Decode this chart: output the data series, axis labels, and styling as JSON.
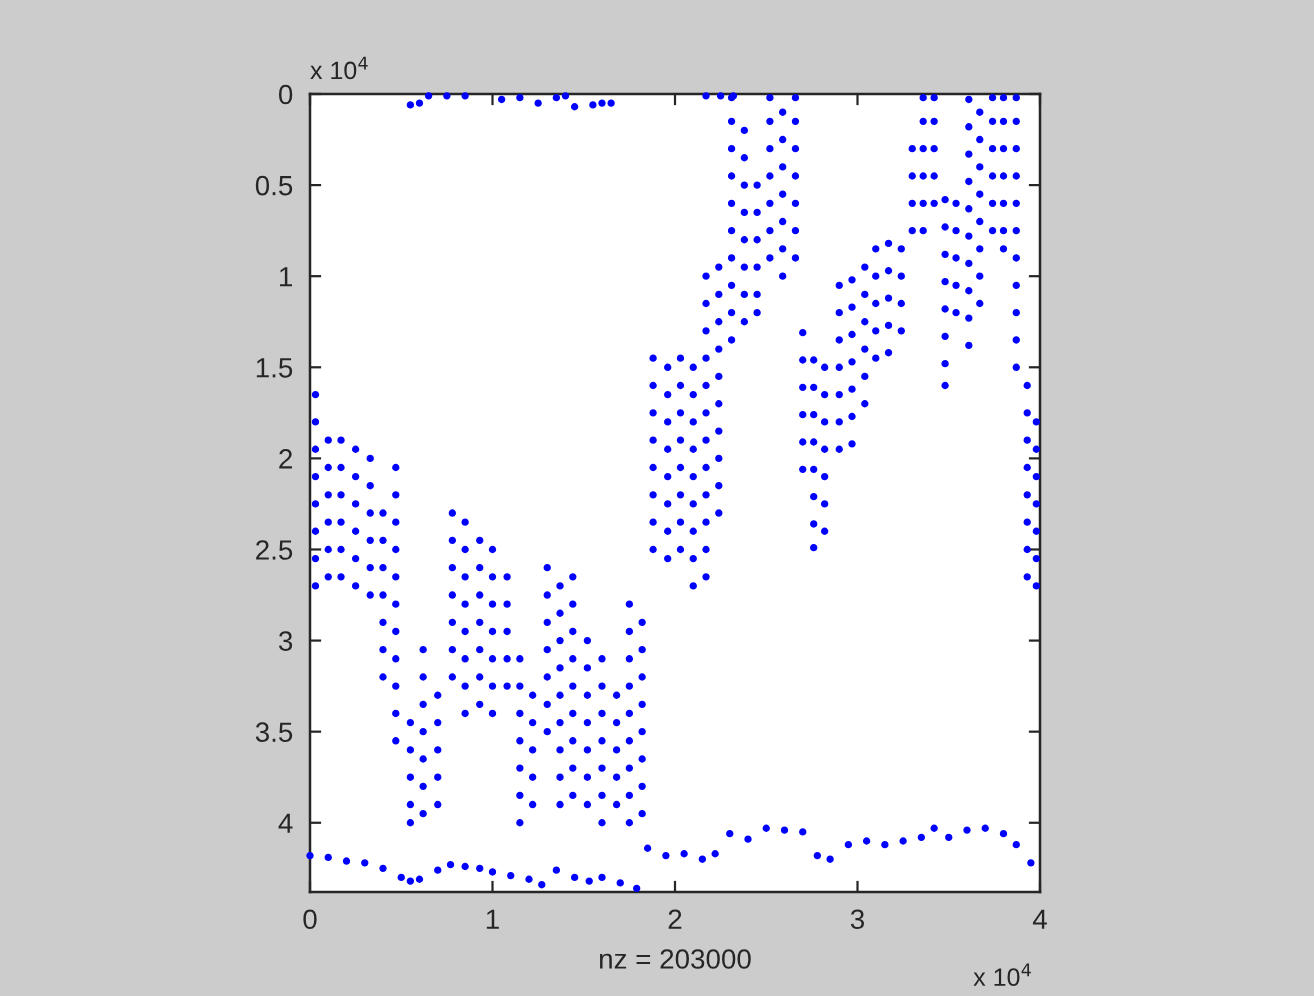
{
  "chart_data": {
    "type": "scatter",
    "xlabel": "nz = 203000",
    "annotations": [
      "x 10$^{4}$",
      "x 10$^{4}$"
    ],
    "xlim": [
      0,
      4
    ],
    "ylim": [
      4.38,
      0
    ],
    "xticks": [
      0,
      1,
      2,
      3,
      4
    ],
    "yticks": [
      0,
      0.5,
      1,
      1.5,
      2,
      2.5,
      3,
      3.5,
      4
    ],
    "marker": "circle",
    "series": [
      {
        "color": "#0000ff",
        "x": [
          0.03,
          0.03,
          0.03,
          0.03,
          0.03,
          0.03,
          0.03,
          0.03
        ],
        "values": [
          1.65,
          1.8,
          1.95,
          2.1,
          2.25,
          2.4,
          2.55,
          2.7
        ]
      },
      {
        "color": "#0000ff",
        "x": [
          0.1,
          0.1,
          0.1,
          0.1,
          0.1,
          0.1
        ],
        "values": [
          1.9,
          2.05,
          2.2,
          2.35,
          2.5,
          2.65
        ]
      },
      {
        "color": "#0000ff",
        "x": [
          0.17,
          0.17,
          0.17,
          0.17,
          0.17,
          0.17
        ],
        "values": [
          1.9,
          2.05,
          2.2,
          2.35,
          2.5,
          2.65
        ]
      },
      {
        "color": "#0000ff",
        "x": [
          0.25,
          0.25,
          0.25,
          0.25,
          0.25,
          0.25
        ],
        "values": [
          1.95,
          2.1,
          2.25,
          2.4,
          2.55,
          2.7
        ]
      },
      {
        "color": "#0000ff",
        "x": [
          0.33,
          0.33,
          0.33,
          0.33,
          0.33,
          0.33
        ],
        "values": [
          2.0,
          2.15,
          2.3,
          2.45,
          2.6,
          2.75
        ]
      },
      {
        "color": "#0000ff",
        "x": [
          0.4,
          0.4,
          0.4,
          0.4,
          0.4,
          0.4,
          0.4
        ],
        "values": [
          2.3,
          2.45,
          2.6,
          2.75,
          2.9,
          3.05,
          3.2
        ]
      },
      {
        "color": "#0000ff",
        "x": [
          0.47,
          0.47,
          0.47,
          0.47,
          0.47,
          0.47,
          0.47,
          0.47,
          0.47,
          0.47,
          0.47
        ],
        "values": [
          2.05,
          2.2,
          2.35,
          2.5,
          2.65,
          2.8,
          2.95,
          3.1,
          3.25,
          3.4,
          3.55
        ]
      },
      {
        "color": "#0000ff",
        "x": [
          0.55,
          0.55,
          0.55,
          0.55,
          0.55
        ],
        "values": [
          3.45,
          3.6,
          3.75,
          3.9,
          4.0
        ]
      },
      {
        "color": "#0000ff",
        "x": [
          0.62,
          0.62,
          0.62,
          0.62,
          0.62,
          0.62,
          0.62
        ],
        "values": [
          3.05,
          3.2,
          3.35,
          3.5,
          3.65,
          3.8,
          3.95
        ]
      },
      {
        "color": "#0000ff",
        "x": [
          0.7,
          0.7,
          0.7,
          0.7,
          0.7
        ],
        "values": [
          3.3,
          3.45,
          3.6,
          3.75,
          3.9
        ]
      },
      {
        "color": "#0000ff",
        "x": [
          0.78,
          0.78,
          0.78,
          0.78,
          0.78,
          0.78,
          0.78
        ],
        "values": [
          2.3,
          2.45,
          2.6,
          2.75,
          2.9,
          3.05,
          3.2
        ]
      },
      {
        "color": "#0000ff",
        "x": [
          0.85,
          0.85,
          0.85,
          0.85,
          0.85,
          0.85,
          0.85,
          0.85
        ],
        "values": [
          2.35,
          2.5,
          2.65,
          2.8,
          2.95,
          3.1,
          3.25,
          3.4
        ]
      },
      {
        "color": "#0000ff",
        "x": [
          0.93,
          0.93,
          0.93,
          0.93,
          0.93,
          0.93,
          0.93
        ],
        "values": [
          2.45,
          2.6,
          2.75,
          2.9,
          3.05,
          3.2,
          3.35
        ]
      },
      {
        "color": "#0000ff",
        "x": [
          1.0,
          1.0,
          1.0,
          1.0,
          1.0,
          1.0,
          1.0
        ],
        "values": [
          2.5,
          2.65,
          2.8,
          2.95,
          3.1,
          3.25,
          3.4
        ]
      },
      {
        "color": "#0000ff",
        "x": [
          1.08,
          1.08,
          1.08,
          1.08,
          1.08
        ],
        "values": [
          2.65,
          2.8,
          2.95,
          3.1,
          3.25
        ]
      },
      {
        "color": "#0000ff",
        "x": [
          1.15,
          1.15,
          1.15,
          1.15,
          1.15,
          1.15,
          1.15
        ],
        "values": [
          3.1,
          3.25,
          3.4,
          3.55,
          3.7,
          3.85,
          4.0
        ]
      },
      {
        "color": "#0000ff",
        "x": [
          1.22,
          1.22,
          1.22,
          1.22,
          1.22
        ],
        "values": [
          3.3,
          3.45,
          3.6,
          3.75,
          3.9
        ]
      },
      {
        "color": "#0000ff",
        "x": [
          1.3,
          1.3,
          1.3,
          1.3,
          1.3,
          1.3,
          1.3
        ],
        "values": [
          2.6,
          2.75,
          2.9,
          3.05,
          3.2,
          3.35,
          3.5
        ]
      },
      {
        "color": "#0000ff",
        "x": [
          1.37,
          1.37,
          1.37,
          1.37,
          1.37,
          1.37,
          1.37,
          1.37,
          1.37
        ],
        "values": [
          2.7,
          2.85,
          3.0,
          3.15,
          3.3,
          3.45,
          3.6,
          3.75,
          3.9
        ]
      },
      {
        "color": "#0000ff",
        "x": [
          1.44,
          1.44,
          1.44,
          1.44,
          1.44,
          1.44,
          1.44,
          1.44,
          1.44
        ],
        "values": [
          2.65,
          2.8,
          2.95,
          3.1,
          3.25,
          3.4,
          3.55,
          3.7,
          3.85
        ]
      },
      {
        "color": "#0000ff",
        "x": [
          1.52,
          1.52,
          1.52,
          1.52,
          1.52,
          1.52,
          1.52
        ],
        "values": [
          3.0,
          3.15,
          3.3,
          3.45,
          3.6,
          3.75,
          3.9
        ]
      },
      {
        "color": "#0000ff",
        "x": [
          1.6,
          1.6,
          1.6,
          1.6,
          1.6,
          1.6,
          1.6
        ],
        "values": [
          3.1,
          3.25,
          3.4,
          3.55,
          3.7,
          3.85,
          4.0
        ]
      },
      {
        "color": "#0000ff",
        "x": [
          1.68,
          1.68,
          1.68,
          1.68,
          1.68
        ],
        "values": [
          3.3,
          3.45,
          3.6,
          3.75,
          3.9
        ]
      },
      {
        "color": "#0000ff",
        "x": [
          1.75,
          1.75,
          1.75,
          1.75,
          1.75,
          1.75,
          1.75,
          1.75,
          1.75
        ],
        "values": [
          2.8,
          2.95,
          3.1,
          3.25,
          3.4,
          3.55,
          3.7,
          3.85,
          4.0
        ]
      },
      {
        "color": "#0000ff",
        "x": [
          1.82,
          1.82,
          1.82,
          1.82,
          1.82,
          1.82,
          1.82,
          1.82
        ],
        "values": [
          2.9,
          3.05,
          3.2,
          3.35,
          3.5,
          3.65,
          3.8,
          3.95
        ]
      },
      {
        "color": "#0000ff",
        "x": [
          1.88,
          1.88,
          1.88,
          1.88,
          1.88,
          1.88,
          1.88,
          1.88
        ],
        "values": [
          1.45,
          1.6,
          1.75,
          1.9,
          2.05,
          2.2,
          2.35,
          2.5
        ]
      },
      {
        "color": "#0000ff",
        "x": [
          1.96,
          1.96,
          1.96,
          1.96,
          1.96,
          1.96,
          1.96,
          1.96
        ],
        "values": [
          1.5,
          1.65,
          1.8,
          1.95,
          2.1,
          2.25,
          2.4,
          2.55
        ]
      },
      {
        "color": "#0000ff",
        "x": [
          2.03,
          2.03,
          2.03,
          2.03,
          2.03,
          2.03,
          2.03,
          2.03
        ],
        "values": [
          1.45,
          1.6,
          1.75,
          1.9,
          2.05,
          2.2,
          2.35,
          2.5
        ]
      },
      {
        "color": "#0000ff",
        "x": [
          2.1,
          2.1,
          2.1,
          2.1,
          2.1,
          2.1,
          2.1,
          2.1,
          2.1
        ],
        "values": [
          1.5,
          1.65,
          1.8,
          1.95,
          2.1,
          2.25,
          2.4,
          2.55,
          2.7
        ]
      },
      {
        "color": "#0000ff",
        "x": [
          2.17,
          2.17,
          2.17,
          2.17,
          2.17,
          2.17,
          2.17,
          2.17,
          2.17,
          2.17,
          2.17,
          2.17
        ],
        "values": [
          1.0,
          1.15,
          1.3,
          1.45,
          1.6,
          1.75,
          1.9,
          2.05,
          2.2,
          2.35,
          2.5,
          2.65
        ]
      },
      {
        "color": "#0000ff",
        "x": [
          2.24,
          2.24,
          2.24,
          2.24,
          2.24,
          2.24,
          2.24,
          2.24,
          2.24,
          2.24
        ],
        "values": [
          0.95,
          1.1,
          1.25,
          1.4,
          1.55,
          1.7,
          1.85,
          2.0,
          2.15,
          2.3
        ]
      },
      {
        "color": "#0000ff",
        "x": [
          2.31,
          2.31,
          2.31,
          2.31,
          2.31,
          2.31,
          2.31,
          2.31,
          2.31,
          2.31
        ],
        "values": [
          0.02,
          0.15,
          0.3,
          0.45,
          0.6,
          0.75,
          0.9,
          1.05,
          1.2,
          1.35
        ]
      },
      {
        "color": "#0000ff",
        "x": [
          2.38,
          2.38,
          2.38,
          2.38,
          2.38,
          2.38,
          2.38,
          2.38
        ],
        "values": [
          0.2,
          0.35,
          0.5,
          0.65,
          0.8,
          0.95,
          1.1,
          1.25
        ]
      },
      {
        "color": "#0000ff",
        "x": [
          2.45,
          2.45,
          2.45,
          2.45,
          2.45,
          2.45
        ],
        "values": [
          0.5,
          0.65,
          0.8,
          0.95,
          1.1,
          1.2
        ]
      },
      {
        "color": "#0000ff",
        "x": [
          2.52,
          2.52,
          2.52,
          2.52,
          2.52,
          2.52,
          2.52
        ],
        "values": [
          0.02,
          0.15,
          0.3,
          0.45,
          0.6,
          0.75,
          0.9
        ]
      },
      {
        "color": "#0000ff",
        "x": [
          2.59,
          2.59,
          2.59,
          2.59,
          2.59,
          2.59,
          2.59
        ],
        "values": [
          0.1,
          0.25,
          0.4,
          0.55,
          0.7,
          0.85,
          1.0
        ]
      },
      {
        "color": "#0000ff",
        "x": [
          2.66,
          2.66,
          2.66,
          2.66,
          2.66,
          2.66,
          2.66
        ],
        "values": [
          0.02,
          0.15,
          0.3,
          0.45,
          0.6,
          0.75,
          0.9
        ]
      },
      {
        "color": "#0000ff",
        "x": [
          2.7,
          2.7,
          2.7,
          2.7,
          2.7,
          2.7
        ],
        "values": [
          1.31,
          1.46,
          1.61,
          1.76,
          1.91,
          2.06
        ]
      },
      {
        "color": "#0000ff",
        "x": [
          2.76,
          2.76,
          2.76,
          2.76,
          2.76,
          2.76,
          2.76,
          2.76
        ],
        "values": [
          1.46,
          1.61,
          1.76,
          1.91,
          2.06,
          2.21,
          2.36,
          2.49
        ]
      },
      {
        "color": "#0000ff",
        "x": [
          2.82,
          2.82,
          2.82,
          2.82,
          2.82,
          2.82,
          2.82
        ],
        "values": [
          1.5,
          1.65,
          1.8,
          1.95,
          2.1,
          2.25,
          2.4
        ]
      },
      {
        "color": "#0000ff",
        "x": [
          2.9,
          2.9,
          2.9,
          2.9,
          2.9,
          2.9,
          2.9
        ],
        "values": [
          1.05,
          1.2,
          1.35,
          1.5,
          1.65,
          1.8,
          1.95
        ]
      },
      {
        "color": "#0000ff",
        "x": [
          2.97,
          2.97,
          2.97,
          2.97,
          2.97,
          2.97,
          2.97
        ],
        "values": [
          1.02,
          1.17,
          1.32,
          1.47,
          1.62,
          1.77,
          1.92
        ]
      },
      {
        "color": "#0000ff",
        "x": [
          3.04,
          3.04,
          3.04,
          3.04,
          3.04,
          3.04
        ],
        "values": [
          0.95,
          1.1,
          1.25,
          1.4,
          1.55,
          1.7
        ]
      },
      {
        "color": "#0000ff",
        "x": [
          3.1,
          3.1,
          3.1,
          3.1,
          3.1
        ],
        "values": [
          0.85,
          1.0,
          1.15,
          1.3,
          1.45
        ]
      },
      {
        "color": "#0000ff",
        "x": [
          3.17,
          3.17,
          3.17,
          3.17,
          3.17
        ],
        "values": [
          0.82,
          0.97,
          1.12,
          1.27,
          1.42
        ]
      },
      {
        "color": "#0000ff",
        "x": [
          3.24,
          3.24,
          3.24,
          3.24
        ],
        "values": [
          0.85,
          1.0,
          1.15,
          1.3
        ]
      },
      {
        "color": "#0000ff",
        "x": [
          3.3,
          3.3,
          3.3,
          3.3
        ],
        "values": [
          0.3,
          0.45,
          0.6,
          0.75
        ]
      },
      {
        "color": "#0000ff",
        "x": [
          3.36,
          3.36,
          3.36,
          3.36,
          3.36,
          3.36
        ],
        "values": [
          0.02,
          0.15,
          0.3,
          0.45,
          0.6,
          0.75
        ]
      },
      {
        "color": "#0000ff",
        "x": [
          3.42,
          3.42,
          3.42,
          3.42,
          3.42
        ],
        "values": [
          0.02,
          0.15,
          0.3,
          0.45,
          0.6
        ]
      },
      {
        "color": "#0000ff",
        "x": [
          3.48,
          3.48,
          3.48,
          3.48,
          3.48,
          3.48,
          3.48,
          3.48
        ],
        "values": [
          0.58,
          0.73,
          0.88,
          1.03,
          1.18,
          1.33,
          1.48,
          1.6
        ]
      },
      {
        "color": "#0000ff",
        "x": [
          3.54,
          3.54,
          3.54,
          3.54,
          3.54
        ],
        "values": [
          0.6,
          0.75,
          0.9,
          1.05,
          1.2
        ]
      },
      {
        "color": "#0000ff",
        "x": [
          3.61,
          3.61,
          3.61,
          3.61,
          3.61,
          3.61,
          3.61,
          3.61,
          3.61,
          3.61
        ],
        "values": [
          0.03,
          0.18,
          0.33,
          0.48,
          0.63,
          0.78,
          0.93,
          1.08,
          1.23,
          1.38
        ]
      },
      {
        "color": "#0000ff",
        "x": [
          3.67,
          3.67,
          3.67,
          3.67,
          3.67,
          3.67,
          3.67,
          3.67
        ],
        "values": [
          0.1,
          0.25,
          0.4,
          0.55,
          0.7,
          0.85,
          1.0,
          1.15
        ]
      },
      {
        "color": "#0000ff",
        "x": [
          3.74,
          3.74,
          3.74,
          3.74,
          3.74,
          3.74
        ],
        "values": [
          0.02,
          0.15,
          0.3,
          0.45,
          0.6,
          0.75
        ]
      },
      {
        "color": "#0000ff",
        "x": [
          3.8,
          3.8,
          3.8,
          3.8,
          3.8,
          3.8,
          3.8
        ],
        "values": [
          0.02,
          0.15,
          0.3,
          0.45,
          0.6,
          0.75,
          0.85
        ]
      },
      {
        "color": "#0000ff",
        "x": [
          3.87,
          3.87,
          3.87,
          3.87,
          3.87,
          3.87,
          3.87,
          3.87,
          3.87,
          3.87,
          3.87
        ],
        "values": [
          0.02,
          0.15,
          0.3,
          0.45,
          0.6,
          0.75,
          0.9,
          1.05,
          1.2,
          1.35,
          1.5
        ]
      },
      {
        "color": "#0000ff",
        "x": [
          3.93,
          3.93,
          3.93,
          3.93,
          3.93,
          3.93,
          3.93,
          3.93
        ],
        "values": [
          1.6,
          1.75,
          1.9,
          2.05,
          2.2,
          2.35,
          2.5,
          2.65
        ]
      },
      {
        "color": "#0000ff",
        "x": [
          3.98,
          3.98,
          3.98,
          3.98,
          3.98,
          3.98,
          3.98
        ],
        "values": [
          1.8,
          1.95,
          2.1,
          2.25,
          2.4,
          2.55,
          2.7
        ]
      },
      {
        "color": "#0000ff",
        "x": [
          0,
          0.1,
          0.2,
          0.3,
          0.4,
          0.5,
          0.55,
          0.6,
          0.7,
          0.77,
          0.85,
          0.93,
          1.0,
          1.1,
          1.2,
          1.27,
          1.35,
          1.45,
          1.53,
          1.6,
          1.7,
          1.79,
          1.85,
          1.95,
          2.05,
          2.15,
          2.22,
          2.3,
          2.4,
          2.5,
          2.6,
          2.7,
          2.78,
          2.85,
          2.95,
          3.05,
          3.15,
          3.25,
          3.35,
          3.42,
          3.5,
          3.6,
          3.7,
          3.8,
          3.87,
          3.95
        ],
        "values": [
          4.18,
          4.19,
          4.21,
          4.22,
          4.25,
          4.3,
          4.32,
          4.31,
          4.26,
          4.23,
          4.24,
          4.25,
          4.27,
          4.29,
          4.31,
          4.34,
          4.26,
          4.3,
          4.32,
          4.3,
          4.33,
          4.36,
          4.14,
          4.18,
          4.17,
          4.2,
          4.17,
          4.06,
          4.09,
          4.03,
          4.04,
          4.05,
          4.18,
          4.2,
          4.12,
          4.1,
          4.12,
          4.1,
          4.08,
          4.03,
          4.08,
          4.04,
          4.03,
          4.06,
          4.12,
          4.22
        ]
      },
      {
        "color": "#0000ff",
        "x": [
          0.55,
          0.6,
          0.65,
          0.75,
          0.85,
          1.05,
          1.15,
          1.25,
          1.35,
          1.4,
          1.45,
          1.55,
          1.6,
          1.65,
          2.17,
          2.25,
          2.32
        ],
        "values": [
          0.06,
          0.05,
          0.01,
          0.01,
          0.01,
          0.03,
          0.02,
          0.05,
          0.02,
          0.01,
          0.07,
          0.06,
          0.05,
          0.05,
          0.01,
          0.01,
          0.01
        ]
      }
    ]
  }
}
